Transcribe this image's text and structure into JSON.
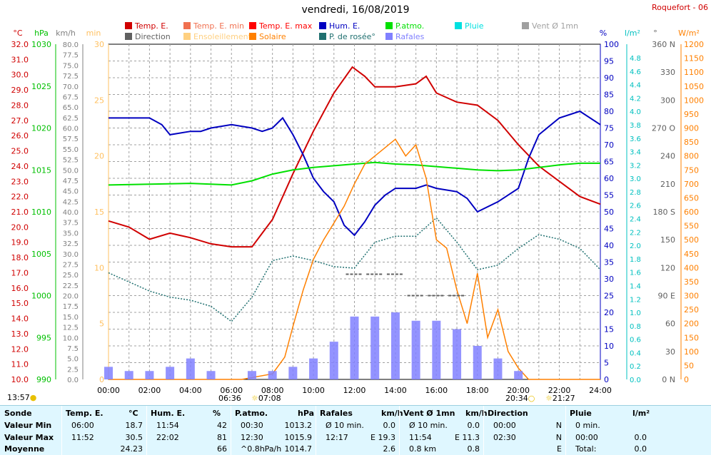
{
  "title": "vendredi, 16/08/2019",
  "station": "Roquefort - 06",
  "legend": [
    {
      "label": "Temp. E.",
      "color": "#d00000"
    },
    {
      "label": "Direction",
      "color": "#606060"
    },
    {
      "label": "Temp. E. min",
      "color": "#f07050"
    },
    {
      "label": "Ensoleillement",
      "color": "#ffd080"
    },
    {
      "label": "Temp. E. max",
      "color": "#ff0000"
    },
    {
      "label": "Solaire",
      "color": "#ff8000"
    },
    {
      "label": "Hum. E.",
      "color": "#0000c0"
    },
    {
      "label": "P. de rosée°",
      "color": "#207070"
    },
    {
      "label": "P.atmo.",
      "color": "#00e000"
    },
    {
      "label": "Rafales",
      "color": "#8080ff"
    },
    {
      "label": "Pluie",
      "color": "#00e0e0"
    },
    {
      "label": "Vent Ø 1mn",
      "color": "#a0a0a0"
    }
  ],
  "axes": {
    "temp": {
      "unit": "°C",
      "ticks": [
        "32.0",
        "31.0",
        "30.0",
        "29.0",
        "28.0",
        "27.0",
        "26.0",
        "25.0",
        "24.0",
        "23.0",
        "22.0",
        "21.0",
        "20.0",
        "19.0",
        "18.0",
        "17.0",
        "16.0",
        "15.0",
        "14.0",
        "13.0",
        "12.0",
        "11.0",
        "10.0"
      ],
      "color": "#d00000"
    },
    "press": {
      "unit": "hPa",
      "ticks": [
        "1030",
        "1025",
        "1020",
        "1015",
        "1010",
        "1005",
        "1000",
        "995",
        "990"
      ],
      "color": "#00c000"
    },
    "wind": {
      "unit": "km/h",
      "ticks": [
        "80.0",
        "77.5",
        "75.0",
        "72.5",
        "70.0",
        "67.5",
        "65.0",
        "62.5",
        "60.0",
        "57.5",
        "55.0",
        "52.5",
        "50.0",
        "47.5",
        "45.0",
        "42.5",
        "40.0",
        "37.5",
        "35.0",
        "32.5",
        "30.0",
        "27.5",
        "25.0",
        "22.5",
        "20.0",
        "17.5",
        "15.0",
        "12.5",
        "10.0",
        "7.5",
        "5.0",
        "2.5",
        "0.0"
      ],
      "color": "#808080"
    },
    "sun_min": {
      "unit": "min",
      "ticks": [
        "30",
        "25",
        "20",
        "15",
        "10",
        "5",
        "0"
      ],
      "color": "#ffc060"
    },
    "hum": {
      "unit": "%",
      "ticks": [
        "100",
        "95",
        "90",
        "85",
        "80",
        "75",
        "70",
        "65",
        "60",
        "55",
        "50",
        "45",
        "40",
        "35",
        "30",
        "25",
        "20",
        "15",
        "10",
        "5",
        "0"
      ],
      "color": "#0000c0"
    },
    "rain": {
      "unit": "l/m²",
      "ticks": [
        "4.8",
        "4.6",
        "4.4",
        "4.2",
        "4.0",
        "3.8",
        "3.6",
        "3.4",
        "3.2",
        "3.0",
        "2.8",
        "2.6",
        "2.4",
        "2.2",
        "2.0",
        "1.8",
        "1.6",
        "1.4",
        "1.2",
        "1.0",
        "0.8",
        "0.6",
        "0.4",
        "0.2",
        "0.0"
      ],
      "color": "#00c0c0"
    },
    "dir": {
      "unit": "°",
      "ticks": [
        "360 N",
        "330",
        "300",
        "270 O",
        "240",
        "210",
        "180 S",
        "150",
        "120",
        "90 E",
        "60",
        "30",
        "0 N"
      ],
      "color": "#606060"
    },
    "solar": {
      "unit": "W/m²",
      "ticks": [
        "1200",
        "1150",
        "1100",
        "1050",
        "1000",
        "950",
        "900",
        "850",
        "800",
        "750",
        "700",
        "650",
        "600",
        "550",
        "500",
        "450",
        "400",
        "350",
        "300",
        "250",
        "200",
        "150",
        "100",
        "50",
        "0"
      ],
      "color": "#ff8000"
    },
    "time": {
      "ticks": [
        "00:00",
        "02:00",
        "04:00",
        "06:00",
        "08:00",
        "10:00",
        "12:00",
        "14:00",
        "16:00",
        "18:00",
        "20:00",
        "22:00",
        "24:00"
      ]
    }
  },
  "sun_marks": {
    "left": "13:57",
    "sunrise": "06:36",
    "sunrise2": "07:08",
    "sunset": "20:34",
    "sunset2": "21:27"
  },
  "chart_data": {
    "type": "line",
    "x_range": [
      "00:00",
      "24:00"
    ],
    "series": [
      {
        "name": "Temp. E.",
        "unit": "°C",
        "ylim": [
          10,
          32
        ],
        "x": [
          0,
          1,
          2,
          3,
          4,
          5,
          6,
          7,
          8,
          9,
          10,
          11,
          11.9,
          12.5,
          13,
          14,
          15,
          15.5,
          16,
          17,
          18,
          19,
          20,
          21,
          22,
          23,
          24
        ],
        "y": [
          20.4,
          20.0,
          19.2,
          19.6,
          19.3,
          18.9,
          18.7,
          18.7,
          20.5,
          23.5,
          26.3,
          28.8,
          30.5,
          29.9,
          29.2,
          29.2,
          29.4,
          29.9,
          28.8,
          28.2,
          28.0,
          27.0,
          25.4,
          24.0,
          23.0,
          22.0,
          21.5
        ]
      },
      {
        "name": "Hum. E.",
        "unit": "%",
        "ylim": [
          0,
          100
        ],
        "x": [
          0,
          1,
          2,
          2.6,
          3,
          4,
          4.5,
          5,
          6,
          7,
          7.5,
          8,
          8.5,
          9,
          9.5,
          10,
          10.5,
          11,
          11.5,
          12,
          12.5,
          13,
          13.5,
          14,
          14.5,
          15,
          15.5,
          16,
          17,
          17.5,
          18,
          19,
          20,
          20.5,
          21,
          22,
          23,
          24
        ],
        "y": [
          78,
          78,
          78,
          76,
          73,
          74,
          74,
          75,
          76,
          75,
          74,
          75,
          78,
          73,
          67,
          60,
          56,
          53,
          46,
          43,
          47,
          52,
          55,
          57,
          57,
          57,
          58,
          57,
          56,
          54,
          50,
          53,
          57,
          66,
          73,
          78,
          80,
          76
        ]
      },
      {
        "name": "P.atmo.",
        "unit": "hPa",
        "ylim": [
          990,
          1030
        ],
        "x": [
          0,
          2,
          4,
          6,
          7,
          8,
          9,
          10,
          11,
          12,
          13,
          14,
          15,
          16,
          17,
          18,
          19,
          20,
          21,
          22,
          23,
          24
        ],
        "y": [
          1013.2,
          1013.3,
          1013.4,
          1013.2,
          1013.7,
          1014.5,
          1015.0,
          1015.3,
          1015.5,
          1015.7,
          1015.9,
          1015.7,
          1015.6,
          1015.4,
          1015.2,
          1015.0,
          1014.9,
          1015.0,
          1015.3,
          1015.6,
          1015.8,
          1015.8
        ]
      },
      {
        "name": "P. de rosée°",
        "unit": "°C",
        "ylim": [
          10,
          32
        ],
        "x": [
          0,
          1,
          2,
          3,
          4,
          5,
          6,
          7,
          8,
          9,
          10,
          11,
          12,
          13,
          14,
          15,
          16,
          17,
          18,
          19,
          20,
          21,
          22,
          23,
          24
        ],
        "y": [
          17.0,
          16.4,
          15.8,
          15.4,
          15.2,
          14.8,
          13.8,
          15.4,
          17.8,
          18.1,
          17.8,
          17.4,
          17.3,
          19.0,
          19.4,
          19.4,
          20.6,
          19.0,
          17.2,
          17.5,
          18.6,
          19.5,
          19.2,
          18.6,
          17.2
        ]
      },
      {
        "name": "Solaire",
        "unit": "W/m²",
        "ylim": [
          0,
          1200
        ],
        "x": [
          0,
          6.5,
          8,
          8.6,
          9,
          9.5,
          10,
          10.5,
          11,
          11.5,
          12,
          12.5,
          13,
          13.5,
          14,
          14.5,
          15,
          15.5,
          16,
          16.5,
          17,
          17.5,
          18,
          18.5,
          19,
          19.5,
          20,
          20.5,
          21.5,
          24
        ],
        "y": [
          0,
          0,
          20,
          80,
          190,
          320,
          430,
          500,
          560,
          620,
          700,
          770,
          800,
          830,
          860,
          800,
          840,
          720,
          500,
          470,
          320,
          200,
          380,
          150,
          250,
          100,
          40,
          0,
          0,
          0
        ]
      },
      {
        "name": "Rafales",
        "unit": "km/h",
        "ylim": [
          0,
          80
        ],
        "x": [
          0,
          1,
          2,
          3,
          4,
          5,
          6,
          7,
          8,
          9,
          10,
          11,
          12,
          13,
          14,
          15,
          16,
          17,
          18,
          19,
          20,
          21,
          22,
          23,
          24
        ],
        "y": [
          3,
          2,
          2,
          3,
          5,
          2,
          0,
          2,
          2,
          3,
          5,
          9,
          15,
          15,
          16,
          14,
          14,
          12,
          8,
          5,
          2,
          0,
          0,
          0,
          0
        ]
      },
      {
        "name": "Direction",
        "unit": "°",
        "ylim": [
          0,
          360
        ],
        "x": [
          12,
          13,
          14,
          15,
          16,
          17
        ],
        "y": [
          113,
          113,
          113,
          90,
          90,
          90
        ]
      }
    ],
    "xlabel": "",
    "grid": true
  },
  "table": {
    "rows": [
      "Sonde",
      "Valeur Min",
      "Valeur Max",
      "Moyenne"
    ],
    "cols": [
      {
        "h": "Temp. E.",
        "u": "°C",
        "r": [
          [
            "06:00",
            "18.7"
          ],
          [
            "11:52",
            "30.5"
          ],
          [
            "",
            "24.23"
          ]
        ]
      },
      {
        "h": "Hum. E.",
        "u": "%",
        "r": [
          [
            "11:54",
            "42"
          ],
          [
            "22:02",
            "81"
          ],
          [
            "",
            "66"
          ]
        ]
      },
      {
        "h": "P.atmo.",
        "u": "hPa",
        "r": [
          [
            "00:30",
            "1013.2"
          ],
          [
            "12:30",
            "1015.9"
          ],
          [
            "^0.8hPa/h",
            "1014.7"
          ]
        ]
      },
      {
        "h": "Rafales",
        "u": "km/h",
        "r": [
          [
            "Ø 10 min.",
            "0.0"
          ],
          [
            "12:17",
            "E 19.3"
          ],
          [
            "",
            "2.6"
          ]
        ]
      },
      {
        "h": "Vent Ø 1mn",
        "u": "km/h",
        "r": [
          [
            "Ø 10 min.",
            "0.0"
          ],
          [
            "11:54",
            "E 11.3"
          ],
          [
            "0.8 km",
            "0.8"
          ]
        ]
      },
      {
        "h": "Direction",
        "u": "",
        "r": [
          [
            "00:00",
            "N"
          ],
          [
            "02:30",
            "N"
          ],
          [
            "",
            "E"
          ]
        ]
      },
      {
        "h": "Pluie",
        "u": "l/m²",
        "r": [
          [
            "0 min.",
            ""
          ],
          [
            "00:00",
            "0.0"
          ],
          [
            "Total:",
            "0.0"
          ]
        ]
      }
    ]
  }
}
